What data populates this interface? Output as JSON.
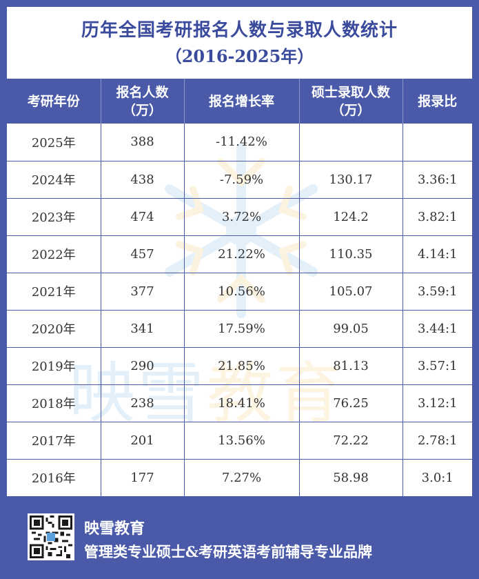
{
  "title": {
    "line1": "历年全国考研报名人数与录取人数统计",
    "line2": "（2016-2025年）"
  },
  "table": {
    "headers": [
      {
        "line1": "考研年份",
        "line2": ""
      },
      {
        "line1": "报名人数",
        "line2": "（万）"
      },
      {
        "line1": "报名增长率",
        "line2": ""
      },
      {
        "line1": "硕士录取人数",
        "line2": "（万）"
      },
      {
        "line1": "报录比",
        "line2": ""
      }
    ],
    "rows": [
      [
        "2025年",
        "388",
        "-11.42%",
        "",
        ""
      ],
      [
        "2024年",
        "438",
        "-7.59%",
        "130.17",
        "3.36:1"
      ],
      [
        "2023年",
        "474",
        "3.72%",
        "124.2",
        "3.82:1"
      ],
      [
        "2022年",
        "457",
        "21.22%",
        "110.35",
        "4.14:1"
      ],
      [
        "2021年",
        "377",
        "10.56%",
        "105.07",
        "3.59:1"
      ],
      [
        "2020年",
        "341",
        "17.59%",
        "99.05",
        "3.44:1"
      ],
      [
        "2019年",
        "290",
        "21.85%",
        "81.13",
        "3.57:1"
      ],
      [
        "2018年",
        "238",
        "18.41%",
        "76.25",
        "3.12:1"
      ],
      [
        "2017年",
        "201",
        "13.56%",
        "72.22",
        "2.78:1"
      ],
      [
        "2016年",
        "177",
        "7.27%",
        "58.98",
        "3.0:1"
      ]
    ]
  },
  "watermark": {
    "chars": [
      "映",
      "雪",
      "教",
      "育"
    ]
  },
  "footer": {
    "brand": "映雪教育",
    "slogan": "管理类专业硕士&考研英语考前辅导专业品牌",
    "qr_icon": "qr-code-icon"
  },
  "colors": {
    "primary": "#4a5aa8",
    "title_text": "#3a4a9c",
    "watermark_blue": "#5aa0dc",
    "watermark_orange": "#f0b446"
  }
}
